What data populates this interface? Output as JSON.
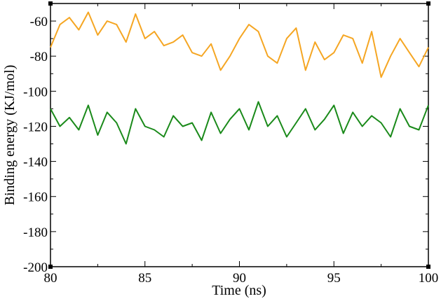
{
  "chart_data": {
    "type": "line",
    "title": "",
    "xlabel": "Time (ns)",
    "ylabel": "Binding energy (KJ/mol)",
    "xlim": [
      80,
      100
    ],
    "ylim": [
      -200,
      -50
    ],
    "x_ticks": [
      80,
      85,
      90,
      95,
      100
    ],
    "x_tick_labels": [
      "80",
      "85",
      "90",
      "95",
      "100"
    ],
    "y_ticks": [
      -200,
      -180,
      -160,
      -140,
      -120,
      -100,
      -80,
      -60
    ],
    "y_tick_labels": [
      "-200",
      "-180",
      "-160",
      "-140",
      "-120",
      "-100",
      "-80",
      "-60"
    ],
    "grid": false,
    "legend": "none",
    "series": [
      {
        "color": "#f5a623",
        "x": [
          80,
          80.5,
          81,
          81.5,
          82,
          82.5,
          83,
          83.5,
          84,
          84.5,
          85,
          85.5,
          86,
          86.5,
          87,
          87.5,
          88,
          88.5,
          89,
          89.5,
          90,
          90.5,
          91,
          91.5,
          92,
          92.5,
          93,
          93.5,
          94,
          94.5,
          95,
          95.5,
          96,
          96.5,
          97,
          97.5,
          98,
          98.5,
          99,
          99.5,
          100
        ],
        "y": [
          -75,
          -62,
          -58,
          -65,
          -55,
          -68,
          -60,
          -62,
          -72,
          -56,
          -70,
          -66,
          -74,
          -72,
          -68,
          -78,
          -80,
          -73,
          -88,
          -80,
          -70,
          -62,
          -66,
          -80,
          -84,
          -70,
          -64,
          -88,
          -72,
          -82,
          -78,
          -68,
          -70,
          -84,
          -66,
          -92,
          -80,
          -70,
          -78,
          -86,
          -75
        ]
      },
      {
        "color": "#1a8a1a",
        "x": [
          80,
          80.5,
          81,
          81.5,
          82,
          82.5,
          83,
          83.5,
          84,
          84.5,
          85,
          85.5,
          86,
          86.5,
          87,
          87.5,
          88,
          88.5,
          89,
          89.5,
          90,
          90.5,
          91,
          91.5,
          92,
          92.5,
          93,
          93.5,
          94,
          94.5,
          95,
          95.5,
          96,
          96.5,
          97,
          97.5,
          98,
          98.5,
          99,
          99.5,
          100
        ],
        "y": [
          -110,
          -120,
          -115,
          -122,
          -108,
          -125,
          -112,
          -118,
          -130,
          -110,
          -120,
          -122,
          -126,
          -114,
          -120,
          -118,
          -128,
          -112,
          -124,
          -116,
          -110,
          -122,
          -106,
          -120,
          -114,
          -126,
          -118,
          -110,
          -122,
          -116,
          -108,
          -124,
          -112,
          -120,
          -114,
          -118,
          -126,
          -110,
          -120,
          -122,
          -108
        ]
      }
    ]
  }
}
